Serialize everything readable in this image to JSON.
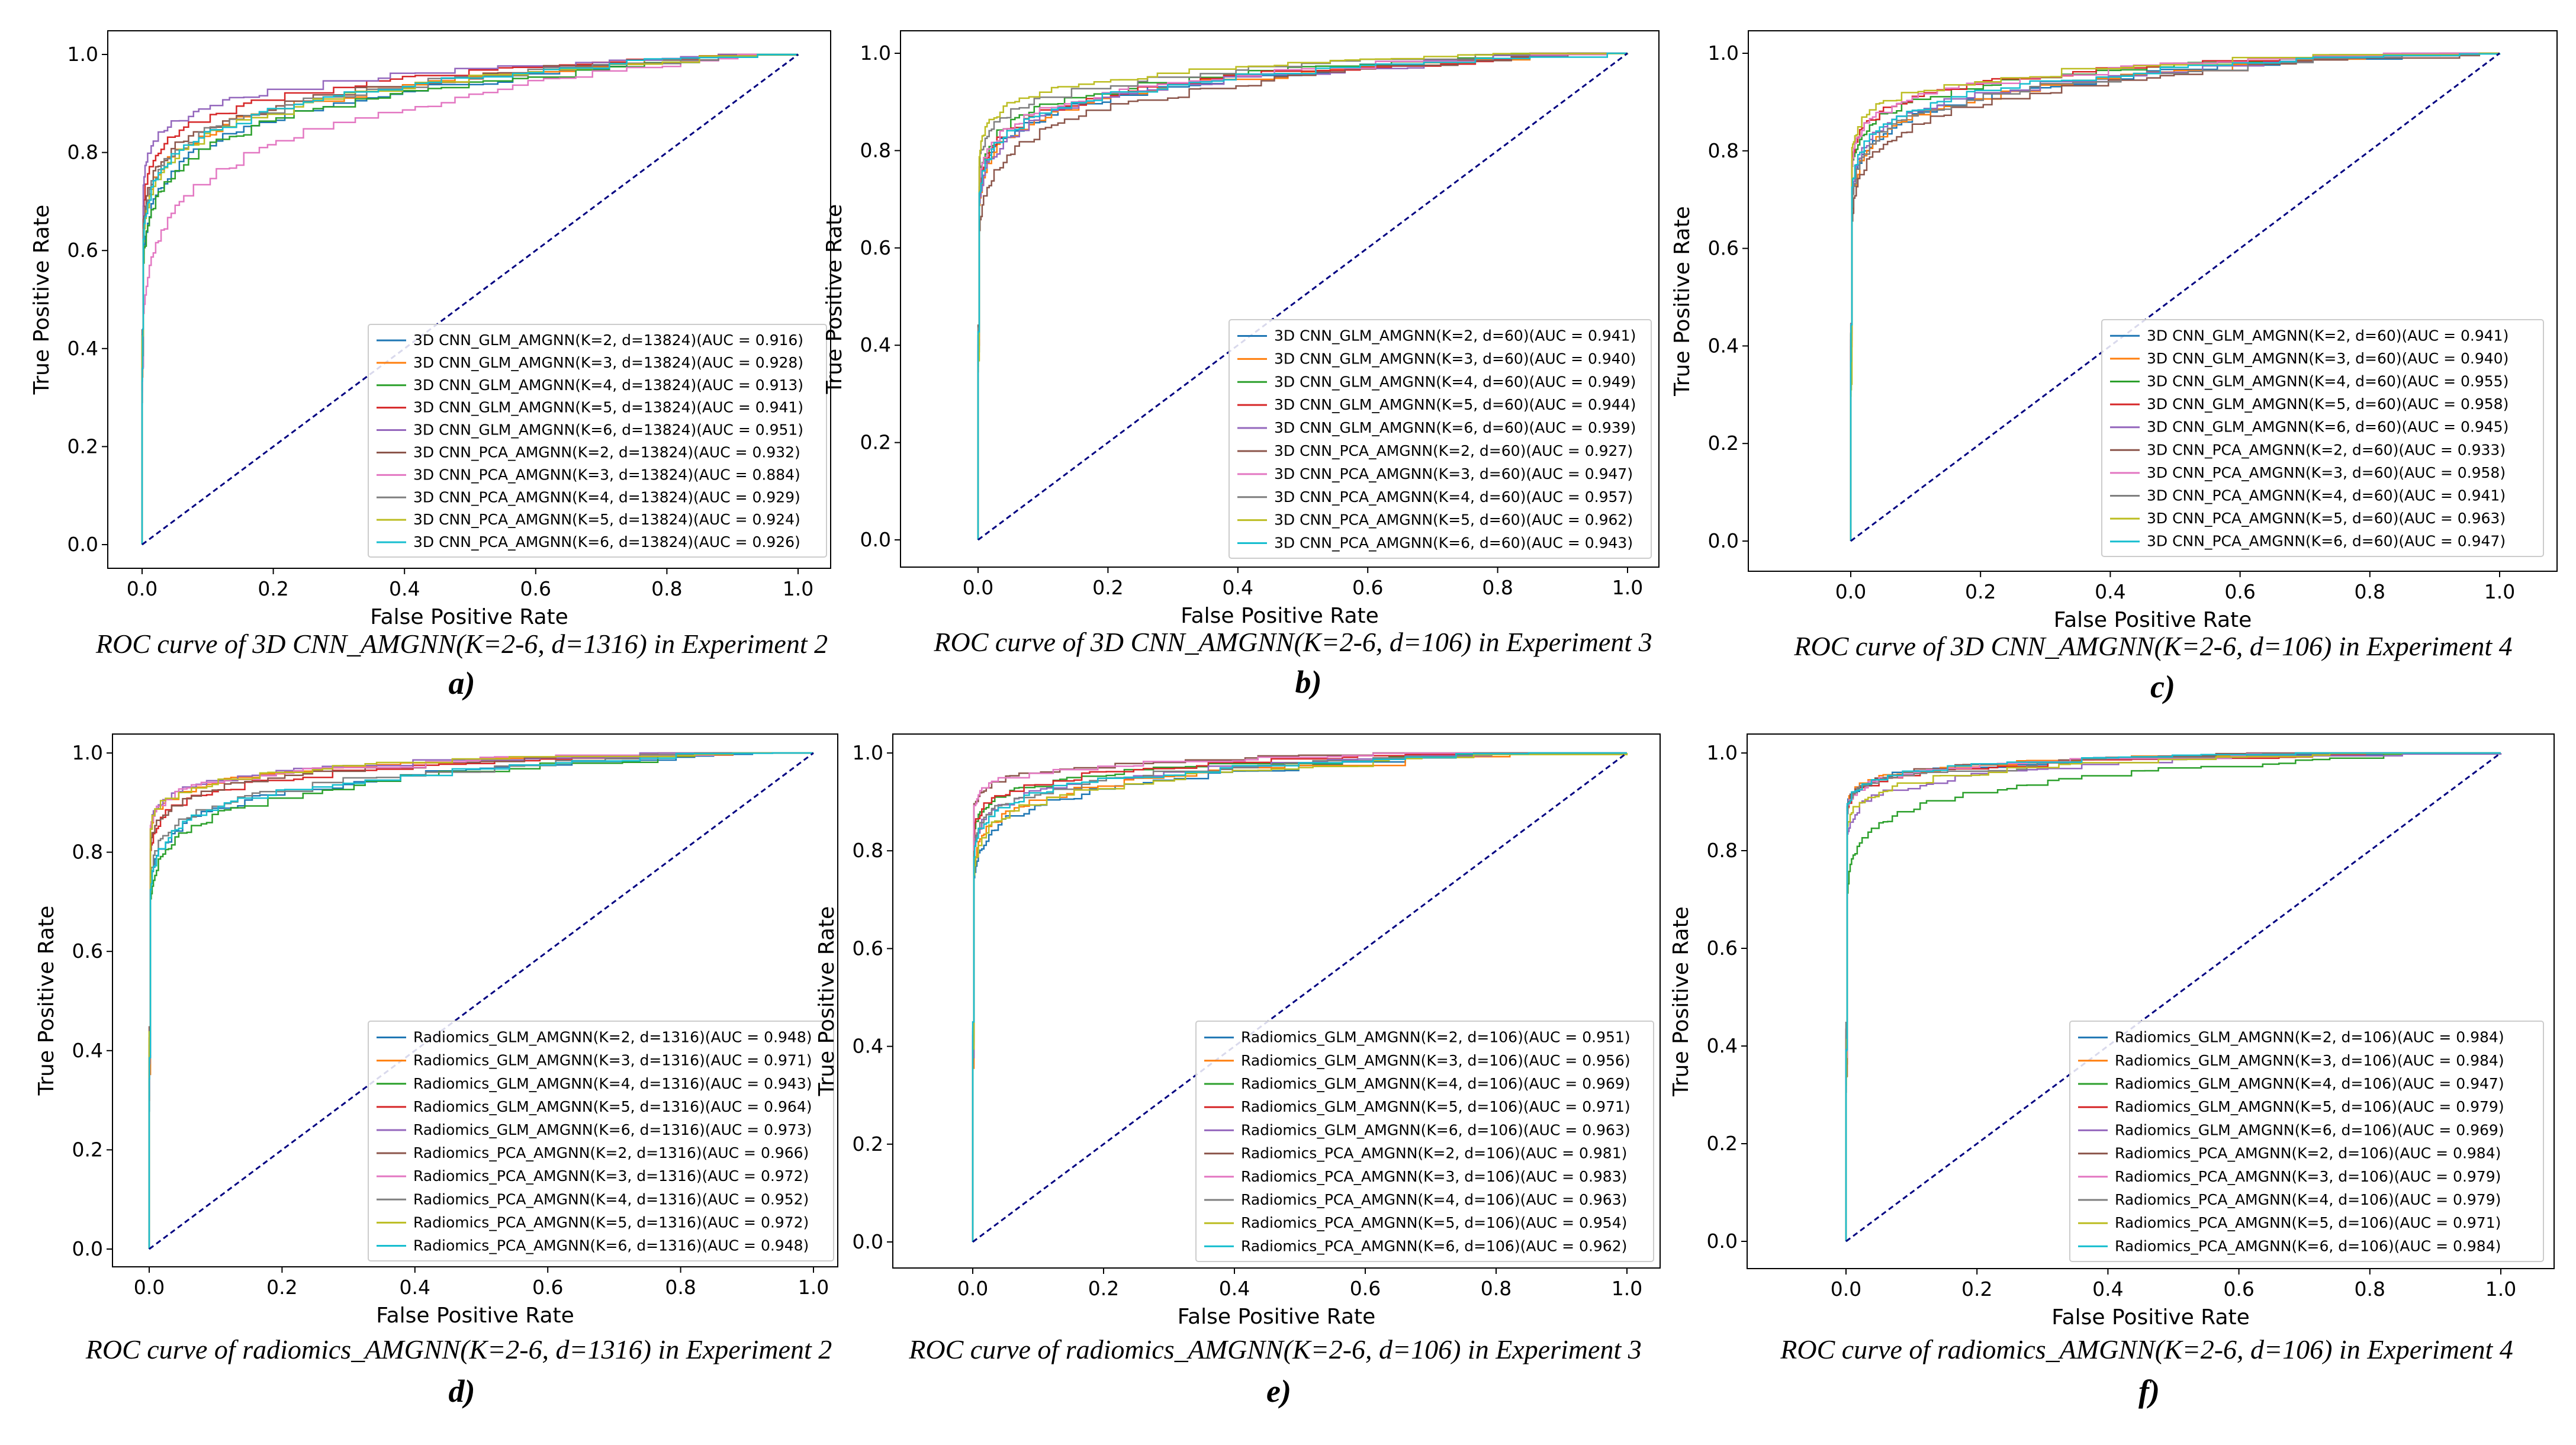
{
  "colors": [
    "#1f77b4",
    "#ff7f0e",
    "#2ca02c",
    "#d62728",
    "#9467bd",
    "#8c564b",
    "#e377c2",
    "#7f7f7f",
    "#bcbd22",
    "#17becf"
  ],
  "diagonal_color": "#000080",
  "chart_data": [
    {
      "type": "line",
      "panel": "a)",
      "caption": "ROC curve of 3D CNN_AMGNN(K=2-6, d=1316) in Experiment 2",
      "xlabel": "False Positive Rate",
      "ylabel": "True Positive Rate",
      "xlim": [
        0,
        1
      ],
      "ylim": [
        0,
        1
      ],
      "ticks": [
        "0.0",
        "0.2",
        "0.4",
        "0.6",
        "0.8",
        "1.0"
      ],
      "legend_position": "lower right",
      "series": [
        {
          "name": "3D CNN_GLM_AMGNN(K=2, d=13824)(AUC = 0.916)",
          "auc": 0.916
        },
        {
          "name": "3D CNN_GLM_AMGNN(K=3, d=13824)(AUC = 0.928)",
          "auc": 0.928
        },
        {
          "name": "3D CNN_GLM_AMGNN(K=4, d=13824)(AUC = 0.913)",
          "auc": 0.913
        },
        {
          "name": "3D CNN_GLM_AMGNN(K=5, d=13824)(AUC = 0.941)",
          "auc": 0.941
        },
        {
          "name": "3D CNN_GLM_AMGNN(K=6, d=13824)(AUC = 0.951)",
          "auc": 0.951
        },
        {
          "name": "3D CNN_PCA_AMGNN(K=2, d=13824)(AUC = 0.932)",
          "auc": 0.932
        },
        {
          "name": "3D CNN_PCA_AMGNN(K=3, d=13824)(AUC = 0.884)",
          "auc": 0.884
        },
        {
          "name": "3D CNN_PCA_AMGNN(K=4, d=13824)(AUC = 0.929)",
          "auc": 0.929
        },
        {
          "name": "3D CNN_PCA_AMGNN(K=5, d=13824)(AUC = 0.924)",
          "auc": 0.924
        },
        {
          "name": "3D CNN_PCA_AMGNN(K=6, d=13824)(AUC = 0.926)",
          "auc": 0.926
        }
      ]
    },
    {
      "type": "line",
      "panel": "b)",
      "caption": "ROC curve of 3D CNN_AMGNN(K=2-6, d=106) in Experiment 3",
      "xlabel": "False Positive Rate",
      "ylabel": "True Positive Rate",
      "xlim": [
        0,
        1
      ],
      "ylim": [
        0,
        1
      ],
      "ticks": [
        "0.0",
        "0.2",
        "0.4",
        "0.6",
        "0.8",
        "1.0"
      ],
      "legend_position": "lower right",
      "series": [
        {
          "name": "3D CNN_GLM_AMGNN(K=2, d=60)(AUC = 0.941)",
          "auc": 0.941
        },
        {
          "name": "3D CNN_GLM_AMGNN(K=3, d=60)(AUC = 0.940)",
          "auc": 0.94
        },
        {
          "name": "3D CNN_GLM_AMGNN(K=4, d=60)(AUC = 0.949)",
          "auc": 0.949
        },
        {
          "name": "3D CNN_GLM_AMGNN(K=5, d=60)(AUC = 0.944)",
          "auc": 0.944
        },
        {
          "name": "3D CNN_GLM_AMGNN(K=6, d=60)(AUC = 0.939)",
          "auc": 0.939
        },
        {
          "name": "3D CNN_PCA_AMGNN(K=2, d=60)(AUC = 0.927)",
          "auc": 0.927
        },
        {
          "name": "3D CNN_PCA_AMGNN(K=3, d=60)(AUC = 0.947)",
          "auc": 0.947
        },
        {
          "name": "3D CNN_PCA_AMGNN(K=4, d=60)(AUC = 0.957)",
          "auc": 0.957
        },
        {
          "name": "3D CNN_PCA_AMGNN(K=5, d=60)(AUC = 0.962)",
          "auc": 0.962
        },
        {
          "name": "3D CNN_PCA_AMGNN(K=6, d=60)(AUC = 0.943)",
          "auc": 0.943
        }
      ]
    },
    {
      "type": "line",
      "panel": "c)",
      "caption": "ROC curve of 3D CNN_AMGNN(K=2-6, d=106) in Experiment 4",
      "xlabel": "False Positive Rate",
      "ylabel": "True Positive Rate",
      "xlim": [
        0,
        1
      ],
      "ylim": [
        0,
        1
      ],
      "ticks": [
        "0.0",
        "0.2",
        "0.4",
        "0.6",
        "0.8",
        "1.0"
      ],
      "legend_position": "lower right",
      "series": [
        {
          "name": "3D CNN_GLM_AMGNN(K=2, d=60)(AUC = 0.941)",
          "auc": 0.941
        },
        {
          "name": "3D CNN_GLM_AMGNN(K=3, d=60)(AUC = 0.940)",
          "auc": 0.94
        },
        {
          "name": "3D CNN_GLM_AMGNN(K=4, d=60)(AUC = 0.955)",
          "auc": 0.955
        },
        {
          "name": "3D CNN_GLM_AMGNN(K=5, d=60)(AUC = 0.958)",
          "auc": 0.958
        },
        {
          "name": "3D CNN_GLM_AMGNN(K=6, d=60)(AUC = 0.945)",
          "auc": 0.945
        },
        {
          "name": "3D CNN_PCA_AMGNN(K=2, d=60)(AUC = 0.933)",
          "auc": 0.933
        },
        {
          "name": "3D CNN_PCA_AMGNN(K=3, d=60)(AUC = 0.958)",
          "auc": 0.958
        },
        {
          "name": "3D CNN_PCA_AMGNN(K=4, d=60)(AUC = 0.941)",
          "auc": 0.941
        },
        {
          "name": "3D CNN_PCA_AMGNN(K=5, d=60)(AUC = 0.963)",
          "auc": 0.963
        },
        {
          "name": "3D CNN_PCA_AMGNN(K=6, d=60)(AUC = 0.947)",
          "auc": 0.947
        }
      ]
    },
    {
      "type": "line",
      "panel": "d)",
      "caption": "ROC curve of radiomics_AMGNN(K=2-6, d=1316) in Experiment 2",
      "xlabel": "False Positive Rate",
      "ylabel": "True Positive Rate",
      "xlim": [
        0,
        1
      ],
      "ylim": [
        0,
        1
      ],
      "ticks": [
        "0.0",
        "0.2",
        "0.4",
        "0.6",
        "0.8",
        "1.0"
      ],
      "legend_position": "lower right",
      "series": [
        {
          "name": "Radiomics_GLM_AMGNN(K=2, d=1316)(AUC = 0.948)",
          "auc": 0.948
        },
        {
          "name": "Radiomics_GLM_AMGNN(K=3, d=1316)(AUC = 0.971)",
          "auc": 0.971
        },
        {
          "name": "Radiomics_GLM_AMGNN(K=4, d=1316)(AUC = 0.943)",
          "auc": 0.943
        },
        {
          "name": "Radiomics_GLM_AMGNN(K=5, d=1316)(AUC = 0.964)",
          "auc": 0.964
        },
        {
          "name": "Radiomics_GLM_AMGNN(K=6, d=1316)(AUC = 0.973)",
          "auc": 0.973
        },
        {
          "name": "Radiomics_PCA_AMGNN(K=2, d=1316)(AUC = 0.966)",
          "auc": 0.966
        },
        {
          "name": "Radiomics_PCA_AMGNN(K=3, d=1316)(AUC = 0.972)",
          "auc": 0.972
        },
        {
          "name": "Radiomics_PCA_AMGNN(K=4, d=1316)(AUC = 0.952)",
          "auc": 0.952
        },
        {
          "name": "Radiomics_PCA_AMGNN(K=5, d=1316)(AUC = 0.972)",
          "auc": 0.972
        },
        {
          "name": "Radiomics_PCA_AMGNN(K=6, d=1316)(AUC = 0.948)",
          "auc": 0.948
        }
      ]
    },
    {
      "type": "line",
      "panel": "e)",
      "caption": "ROC curve of radiomics_AMGNN(K=2-6, d=106) in Experiment 3",
      "xlabel": "False Positive Rate",
      "ylabel": "True Positive Rate",
      "xlim": [
        0,
        1
      ],
      "ylim": [
        0,
        1
      ],
      "ticks": [
        "0.0",
        "0.2",
        "0.4",
        "0.6",
        "0.8",
        "1.0"
      ],
      "legend_position": "lower right",
      "series": [
        {
          "name": "Radiomics_GLM_AMGNN(K=2, d=106)(AUC = 0.951)",
          "auc": 0.951
        },
        {
          "name": "Radiomics_GLM_AMGNN(K=3, d=106)(AUC = 0.956)",
          "auc": 0.956
        },
        {
          "name": "Radiomics_GLM_AMGNN(K=4, d=106)(AUC = 0.969)",
          "auc": 0.969
        },
        {
          "name": "Radiomics_GLM_AMGNN(K=5, d=106)(AUC = 0.971)",
          "auc": 0.971
        },
        {
          "name": "Radiomics_GLM_AMGNN(K=6, d=106)(AUC = 0.963)",
          "auc": 0.963
        },
        {
          "name": "Radiomics_PCA_AMGNN(K=2, d=106)(AUC = 0.981)",
          "auc": 0.981
        },
        {
          "name": "Radiomics_PCA_AMGNN(K=3, d=106)(AUC = 0.983)",
          "auc": 0.983
        },
        {
          "name": "Radiomics_PCA_AMGNN(K=4, d=106)(AUC = 0.963)",
          "auc": 0.963
        },
        {
          "name": "Radiomics_PCA_AMGNN(K=5, d=106)(AUC = 0.954)",
          "auc": 0.954
        },
        {
          "name": "Radiomics_PCA_AMGNN(K=6, d=106)(AUC = 0.962)",
          "auc": 0.962
        }
      ]
    },
    {
      "type": "line",
      "panel": "f)",
      "caption": "ROC curve of radiomics_AMGNN(K=2-6, d=106) in Experiment 4",
      "xlabel": "False Positive Rate",
      "ylabel": "True Positive Rate",
      "xlim": [
        0,
        1
      ],
      "ylim": [
        0,
        1
      ],
      "ticks": [
        "0.0",
        "0.2",
        "0.4",
        "0.6",
        "0.8",
        "1.0"
      ],
      "legend_position": "lower right",
      "series": [
        {
          "name": "Radiomics_GLM_AMGNN(K=2, d=106)(AUC = 0.984)",
          "auc": 0.984
        },
        {
          "name": "Radiomics_GLM_AMGNN(K=3, d=106)(AUC = 0.984)",
          "auc": 0.984
        },
        {
          "name": "Radiomics_GLM_AMGNN(K=4, d=106)(AUC = 0.947)",
          "auc": 0.947
        },
        {
          "name": "Radiomics_GLM_AMGNN(K=5, d=106)(AUC = 0.979)",
          "auc": 0.979
        },
        {
          "name": "Radiomics_GLM_AMGNN(K=6, d=106)(AUC = 0.969)",
          "auc": 0.969
        },
        {
          "name": "Radiomics_PCA_AMGNN(K=2, d=106)(AUC = 0.984)",
          "auc": 0.984
        },
        {
          "name": "Radiomics_PCA_AMGNN(K=3, d=106)(AUC = 0.979)",
          "auc": 0.979
        },
        {
          "name": "Radiomics_PCA_AMGNN(K=4, d=106)(AUC = 0.979)",
          "auc": 0.979
        },
        {
          "name": "Radiomics_PCA_AMGNN(K=5, d=106)(AUC = 0.971)",
          "auc": 0.971
        },
        {
          "name": "Radiomics_PCA_AMGNN(K=6, d=106)(AUC = 0.984)",
          "auc": 0.984
        }
      ]
    }
  ]
}
